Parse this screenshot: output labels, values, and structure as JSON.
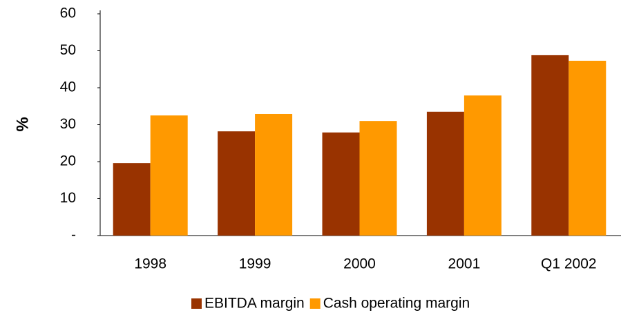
{
  "chart_data": {
    "type": "bar",
    "ylabel": "%",
    "categories": [
      "1998",
      "1999",
      "2000",
      "2001",
      "Q1 2002"
    ],
    "series": [
      {
        "name": "EBITDA margin",
        "color": "#993300",
        "values": [
          19.6,
          28.2,
          27.9,
          33.5,
          48.8
        ]
      },
      {
        "name": "Cash operating margin",
        "color": "#ff9900",
        "values": [
          32.5,
          32.9,
          31.0,
          37.9,
          47.3
        ]
      }
    ],
    "ylim": [
      0,
      60
    ],
    "yticks": [
      {
        "value": 0,
        "label": "-"
      },
      10,
      20,
      30,
      40,
      50,
      60
    ],
    "grid": false,
    "legend": "bottom"
  }
}
